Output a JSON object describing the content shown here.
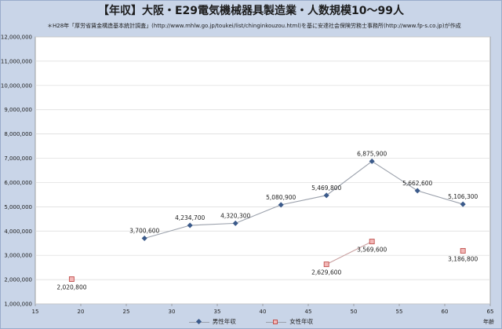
{
  "chart_data": {
    "type": "line",
    "title": "【年収】大阪・E29電気機械器具製造業・人数規模10～99人",
    "subtitle": "＊H28年「厚労省賃金構造基本統計調査」(http://www.mhlw.go.jp/toukei/list/chinginkouzou.html)を基に安達社会保険労務士事務所(http://www.fp-s.co.jp)が作成",
    "xlabel": "年齢",
    "ylabel": "",
    "xlim": [
      15,
      65
    ],
    "ylim": [
      1000000,
      12000000
    ],
    "x_ticks": [
      15,
      20,
      25,
      30,
      35,
      40,
      45,
      50,
      55,
      60,
      65
    ],
    "y_ticks": [
      1000000,
      2000000,
      3000000,
      4000000,
      5000000,
      6000000,
      7000000,
      8000000,
      9000000,
      10000000,
      11000000,
      12000000
    ],
    "x_tick_labels": [
      "15",
      "20",
      "25",
      "30",
      "35",
      "40",
      "45",
      "50",
      "55",
      "60",
      "65"
    ],
    "y_tick_labels": [
      "1,000,000",
      "2,000,000",
      "3,000,000",
      "4,000,000",
      "5,000,000",
      "6,000,000",
      "7,000,000",
      "8,000,000",
      "9,000,000",
      "10,000,000",
      "11,000,000",
      "12,000,000"
    ],
    "grid": true,
    "legend_position": "bottom",
    "series": [
      {
        "name": "男性年収",
        "color": "#3b5a8a",
        "line_color": "#9aa0ab",
        "marker": "diamond",
        "x": [
          27,
          32,
          37,
          42,
          47,
          52,
          57,
          62
        ],
        "y": [
          3700600,
          4234700,
          4320300,
          5080900,
          5469800,
          6875900,
          5662600,
          5106300
        ],
        "labels": [
          "3,700,600",
          "4,234,700",
          "4,320,300",
          "5,080,900",
          "5,469,800",
          "6,875,900",
          "5,662,600",
          "5,106,300"
        ]
      },
      {
        "name": "女性年収",
        "color": "#c0504d",
        "fill": "#f2b8b8",
        "line_color": "#c9a0a0",
        "marker": "square",
        "x": [
          19,
          47,
          52,
          62
        ],
        "y": [
          2020800,
          2629600,
          3569600,
          3186800
        ],
        "labels": [
          "2,020,800",
          "2,629,600",
          "3,569,600",
          "3,186,800"
        ],
        "connected": [
          false,
          true,
          true,
          false
        ]
      }
    ]
  }
}
